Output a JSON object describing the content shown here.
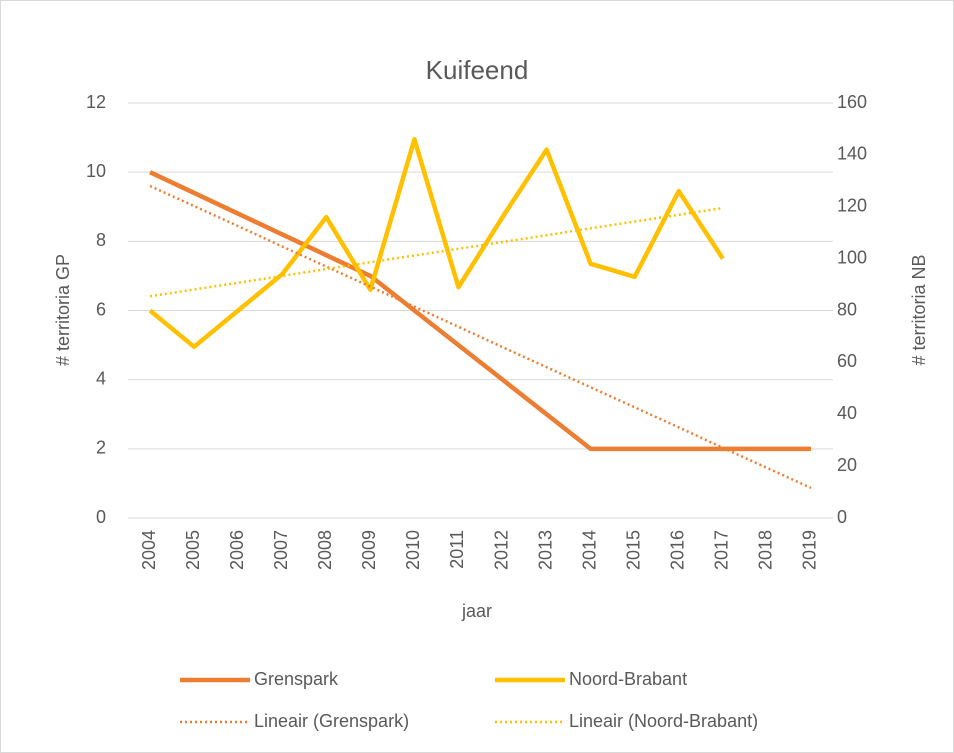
{
  "chart_data": {
    "type": "line",
    "title": "Kuifeend",
    "x_label": "jaar",
    "y_label": "# territoria GP",
    "y2_label": "# territoria NB",
    "categories": [
      "2004",
      "2005",
      "2006",
      "2007",
      "2008",
      "2009",
      "2010",
      "2011",
      "2012",
      "2013",
      "2014",
      "2015",
      "2016",
      "2017",
      "2018",
      "2019"
    ],
    "ylim": [
      0,
      12
    ],
    "yticks": [
      0,
      2,
      4,
      6,
      8,
      10,
      12
    ],
    "y2lim": [
      0,
      160
    ],
    "y2ticks": [
      0,
      20,
      40,
      60,
      80,
      100,
      120,
      140,
      160
    ],
    "grid": true,
    "legend": "bottom",
    "series": [
      {
        "name": "Grenspark",
        "color": "#ed7d31",
        "style": "solid",
        "axis": "y",
        "values": [
          10,
          9.4,
          8.8,
          8.2,
          7.6,
          7,
          6,
          5,
          4,
          3,
          2,
          2,
          2,
          2,
          2,
          2
        ]
      },
      {
        "name": "Noord-Brabant",
        "color": "#ffc000",
        "style": "solid",
        "axis": "y2",
        "values": [
          80,
          66,
          80,
          94,
          116,
          88,
          146,
          89,
          116,
          142,
          98,
          93,
          126,
          100,
          null,
          null
        ]
      },
      {
        "name": "Lineair (Grenspark)",
        "color": "#ed7d31",
        "style": "dotted",
        "axis": "y",
        "values": [
          9.6,
          9.02,
          8.44,
          7.85,
          7.27,
          6.69,
          6.11,
          5.53,
          4.94,
          4.36,
          3.78,
          3.2,
          2.62,
          2.03,
          1.45,
          0.87
        ]
      },
      {
        "name": "Lineair (Noord-Brabant)",
        "color": "#ffc000",
        "style": "dotted",
        "axis": "y2",
        "values": [
          85.5,
          88.1,
          90.7,
          93.3,
          96,
          98.6,
          101.2,
          103.8,
          106.4,
          109,
          111.7,
          114.3,
          116.9,
          119.5,
          null,
          null
        ]
      }
    ]
  }
}
